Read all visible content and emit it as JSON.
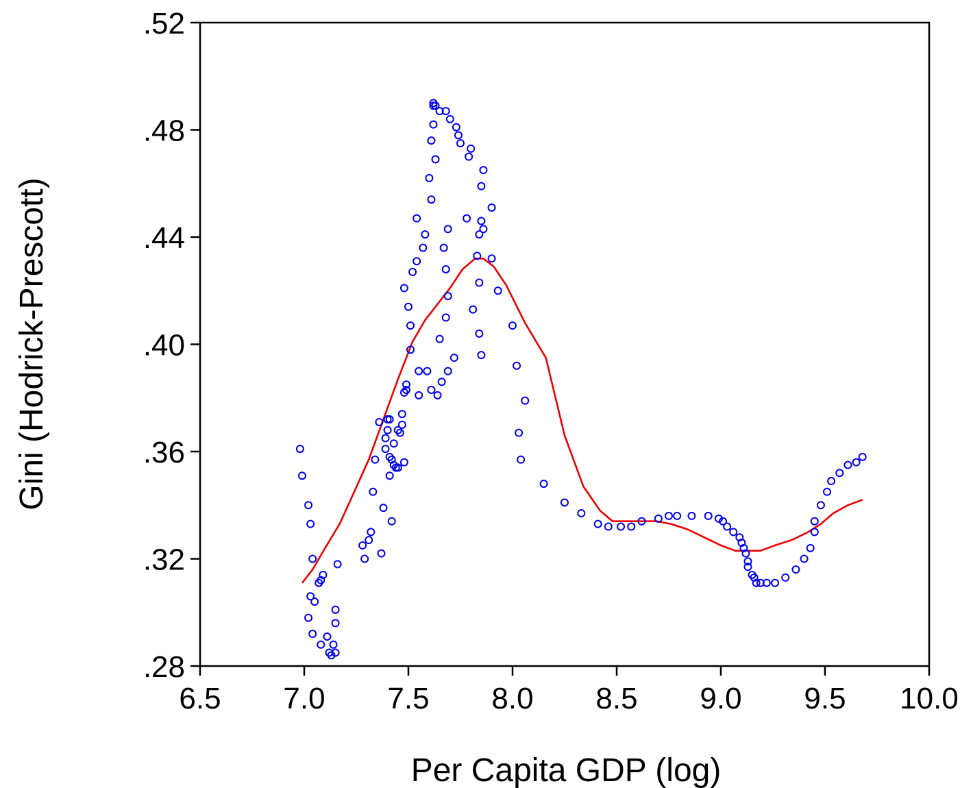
{
  "chart_data": {
    "type": "scatter",
    "title": "",
    "xlabel": "Per Capita GDP (log)",
    "ylabel": "Gini (Hodrick-Prescott)",
    "xlim": [
      6.5,
      10.0
    ],
    "ylim": [
      0.28,
      0.52
    ],
    "xticks": [
      6.5,
      7.0,
      7.5,
      8.0,
      8.5,
      9.0,
      9.5,
      10.0
    ],
    "xtick_labels": [
      "6.5",
      "7.0",
      "7.5",
      "8.0",
      "8.5",
      "9.0",
      "9.5",
      "10.0"
    ],
    "yticks": [
      0.28,
      0.32,
      0.36,
      0.4,
      0.44,
      0.48,
      0.52
    ],
    "ytick_labels": [
      ".28",
      ".32",
      ".36",
      ".40",
      ".44",
      ".48",
      ".52"
    ],
    "grid": false,
    "legend": "none",
    "marker_color": "#0000ee",
    "line_color": "#ee0000",
    "series": [
      {
        "kind": "scatter",
        "marker": "circle-open",
        "points": [
          [
            6.98,
            0.361
          ],
          [
            6.99,
            0.351
          ],
          [
            7.02,
            0.34
          ],
          [
            7.03,
            0.333
          ],
          [
            7.04,
            0.32
          ],
          [
            7.03,
            0.306
          ],
          [
            7.05,
            0.304
          ],
          [
            7.02,
            0.298
          ],
          [
            7.04,
            0.292
          ],
          [
            7.07,
            0.311
          ],
          [
            7.08,
            0.312
          ],
          [
            7.09,
            0.314
          ],
          [
            7.08,
            0.288
          ],
          [
            7.11,
            0.291
          ],
          [
            7.12,
            0.285
          ],
          [
            7.13,
            0.284
          ],
          [
            7.14,
            0.288
          ],
          [
            7.15,
            0.285
          ],
          [
            7.15,
            0.301
          ],
          [
            7.15,
            0.296
          ],
          [
            7.16,
            0.318
          ],
          [
            7.28,
            0.325
          ],
          [
            7.29,
            0.32
          ],
          [
            7.31,
            0.327
          ],
          [
            7.32,
            0.33
          ],
          [
            7.33,
            0.345
          ],
          [
            7.34,
            0.357
          ],
          [
            7.36,
            0.371
          ],
          [
            7.37,
            0.322
          ],
          [
            7.38,
            0.339
          ],
          [
            7.39,
            0.361
          ],
          [
            7.39,
            0.365
          ],
          [
            7.4,
            0.372
          ],
          [
            7.4,
            0.368
          ],
          [
            7.41,
            0.358
          ],
          [
            7.41,
            0.372
          ],
          [
            7.42,
            0.357
          ],
          [
            7.42,
            0.334
          ],
          [
            7.41,
            0.351
          ],
          [
            7.43,
            0.363
          ],
          [
            7.43,
            0.355
          ],
          [
            7.44,
            0.354
          ],
          [
            7.45,
            0.354
          ],
          [
            7.45,
            0.368
          ],
          [
            7.46,
            0.367
          ],
          [
            7.47,
            0.37
          ],
          [
            7.47,
            0.374
          ],
          [
            7.48,
            0.356
          ],
          [
            7.48,
            0.382
          ],
          [
            7.49,
            0.383
          ],
          [
            7.49,
            0.385
          ],
          [
            7.5,
            0.414
          ],
          [
            7.51,
            0.407
          ],
          [
            7.51,
            0.398
          ],
          [
            7.48,
            0.421
          ],
          [
            7.52,
            0.427
          ],
          [
            7.54,
            0.431
          ],
          [
            7.54,
            0.447
          ],
          [
            7.55,
            0.39
          ],
          [
            7.55,
            0.381
          ],
          [
            7.57,
            0.436
          ],
          [
            7.58,
            0.441
          ],
          [
            7.59,
            0.39
          ],
          [
            7.6,
            0.462
          ],
          [
            7.61,
            0.476
          ],
          [
            7.61,
            0.454
          ],
          [
            7.61,
            0.383
          ],
          [
            7.62,
            0.482
          ],
          [
            7.62,
            0.49
          ],
          [
            7.62,
            0.489
          ],
          [
            7.63,
            0.469
          ],
          [
            7.63,
            0.489
          ],
          [
            7.64,
            0.381
          ],
          [
            7.65,
            0.402
          ],
          [
            7.65,
            0.487
          ],
          [
            7.66,
            0.386
          ],
          [
            7.67,
            0.436
          ],
          [
            7.68,
            0.487
          ],
          [
            7.68,
            0.428
          ],
          [
            7.68,
            0.41
          ],
          [
            7.69,
            0.39
          ],
          [
            7.69,
            0.443
          ],
          [
            7.69,
            0.418
          ],
          [
            7.7,
            0.484
          ],
          [
            7.72,
            0.395
          ],
          [
            7.73,
            0.481
          ],
          [
            7.74,
            0.478
          ],
          [
            7.75,
            0.475
          ],
          [
            7.78,
            0.447
          ],
          [
            7.79,
            0.47
          ],
          [
            7.8,
            0.473
          ],
          [
            7.81,
            0.413
          ],
          [
            7.83,
            0.433
          ],
          [
            7.84,
            0.441
          ],
          [
            7.84,
            0.423
          ],
          [
            7.84,
            0.404
          ],
          [
            7.85,
            0.446
          ],
          [
            7.85,
            0.459
          ],
          [
            7.85,
            0.396
          ],
          [
            7.86,
            0.465
          ],
          [
            7.86,
            0.443
          ],
          [
            7.9,
            0.451
          ],
          [
            7.9,
            0.432
          ],
          [
            7.93,
            0.42
          ],
          [
            8.0,
            0.407
          ],
          [
            8.02,
            0.392
          ],
          [
            8.03,
            0.367
          ],
          [
            8.04,
            0.357
          ],
          [
            8.06,
            0.379
          ],
          [
            8.15,
            0.348
          ],
          [
            8.25,
            0.341
          ],
          [
            8.33,
            0.337
          ],
          [
            8.41,
            0.333
          ],
          [
            8.46,
            0.332
          ],
          [
            8.52,
            0.332
          ],
          [
            8.57,
            0.332
          ],
          [
            8.62,
            0.334
          ],
          [
            8.7,
            0.335
          ],
          [
            8.75,
            0.336
          ],
          [
            8.79,
            0.336
          ],
          [
            8.86,
            0.336
          ],
          [
            8.94,
            0.336
          ],
          [
            8.99,
            0.335
          ],
          [
            9.01,
            0.334
          ],
          [
            9.03,
            0.332
          ],
          [
            9.06,
            0.33
          ],
          [
            9.09,
            0.328
          ],
          [
            9.1,
            0.326
          ],
          [
            9.11,
            0.324
          ],
          [
            9.12,
            0.322
          ],
          [
            9.13,
            0.319
          ],
          [
            9.13,
            0.317
          ],
          [
            9.15,
            0.314
          ],
          [
            9.16,
            0.313
          ],
          [
            9.17,
            0.311
          ],
          [
            9.19,
            0.311
          ],
          [
            9.22,
            0.311
          ],
          [
            9.26,
            0.311
          ],
          [
            9.31,
            0.313
          ],
          [
            9.36,
            0.316
          ],
          [
            9.4,
            0.32
          ],
          [
            9.43,
            0.324
          ],
          [
            9.45,
            0.33
          ],
          [
            9.45,
            0.334
          ],
          [
            9.48,
            0.34
          ],
          [
            9.51,
            0.345
          ],
          [
            9.53,
            0.349
          ],
          [
            9.57,
            0.352
          ],
          [
            9.61,
            0.355
          ],
          [
            9.65,
            0.356
          ],
          [
            9.68,
            0.358
          ]
        ]
      },
      {
        "kind": "line",
        "points": [
          [
            6.99,
            0.311
          ],
          [
            7.04,
            0.316
          ],
          [
            7.1,
            0.324
          ],
          [
            7.17,
            0.333
          ],
          [
            7.24,
            0.345
          ],
          [
            7.31,
            0.357
          ],
          [
            7.38,
            0.372
          ],
          [
            7.45,
            0.387
          ],
          [
            7.52,
            0.401
          ],
          [
            7.58,
            0.409
          ],
          [
            7.64,
            0.415
          ],
          [
            7.7,
            0.421
          ],
          [
            7.76,
            0.428
          ],
          [
            7.82,
            0.432
          ],
          [
            7.86,
            0.432
          ],
          [
            7.91,
            0.429
          ],
          [
            7.97,
            0.422
          ],
          [
            8.06,
            0.408
          ],
          [
            8.16,
            0.395
          ],
          [
            8.25,
            0.366
          ],
          [
            8.34,
            0.347
          ],
          [
            8.42,
            0.338
          ],
          [
            8.48,
            0.334
          ],
          [
            8.55,
            0.334
          ],
          [
            8.62,
            0.334
          ],
          [
            8.69,
            0.334
          ],
          [
            8.76,
            0.333
          ],
          [
            8.84,
            0.331
          ],
          [
            8.92,
            0.328
          ],
          [
            9.0,
            0.325
          ],
          [
            9.07,
            0.323
          ],
          [
            9.13,
            0.323
          ],
          [
            9.19,
            0.323
          ],
          [
            9.26,
            0.325
          ],
          [
            9.34,
            0.327
          ],
          [
            9.42,
            0.33
          ],
          [
            9.48,
            0.333
          ],
          [
            9.54,
            0.337
          ],
          [
            9.61,
            0.34
          ],
          [
            9.68,
            0.342
          ]
        ]
      }
    ]
  }
}
